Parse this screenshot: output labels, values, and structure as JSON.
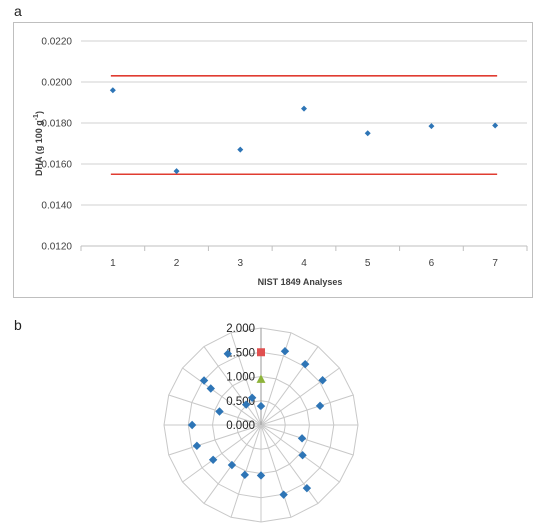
{
  "panels": {
    "a_label": "a",
    "b_label": "b"
  },
  "chart_data": [
    {
      "type": "scatter",
      "title": "",
      "xlabel": "NIST 1849 Analyses",
      "ylabel": "DHA (g 100 g⁻¹)",
      "ylabel_parts": {
        "main": "DHA (g 100 g",
        "sup": "-1",
        "close": ")"
      },
      "xlim": [
        0.5,
        7.5
      ],
      "ylim": [
        0.012,
        0.022
      ],
      "x_ticks": [
        "1",
        "2",
        "3",
        "4",
        "5",
        "6",
        "7"
      ],
      "y_ticks": [
        "0.0120",
        "0.0140",
        "0.0160",
        "0.0180",
        "0.0200",
        "0.0220"
      ],
      "y_tick_values": [
        0.012,
        0.014,
        0.016,
        0.018,
        0.02,
        0.022
      ],
      "grid": "horizontal",
      "series": [
        {
          "values": [
            0.0196,
            0.01565,
            0.0167,
            0.0187,
            0.0175,
            0.01785,
            0.01788
          ],
          "x": [
            1,
            2,
            3,
            4,
            5,
            6,
            7
          ],
          "color": "#2e75b6",
          "marker": "diamond"
        }
      ],
      "reference_lines": [
        {
          "y": 0.0203,
          "color": "#e03c31"
        },
        {
          "y": 0.0155,
          "color": "#e03c31"
        }
      ]
    },
    {
      "type": "polar_scatter",
      "title": "",
      "r_ticks": [
        "0.000",
        "0.500",
        "1.000",
        "1.500",
        "2.000"
      ],
      "r_tick_values": [
        0,
        0.5,
        1.0,
        1.5,
        2.0
      ],
      "rlim": [
        0,
        2.0
      ],
      "angular_divisions": 20,
      "series": [
        {
          "marker": "diamond",
          "color": "#2e75b6",
          "points": [
            {
              "angle_deg": 18,
              "r": 1.6
            },
            {
              "angle_deg": 36,
              "r": 1.55
            },
            {
              "angle_deg": 54,
              "r": 1.57
            },
            {
              "angle_deg": 72,
              "r": 1.28
            },
            {
              "angle_deg": 108,
              "r": 0.89
            },
            {
              "angle_deg": 126,
              "r": 1.06
            },
            {
              "angle_deg": 144,
              "r": 1.61
            },
            {
              "angle_deg": 162,
              "r": 1.51
            },
            {
              "angle_deg": 180,
              "r": 1.04
            },
            {
              "angle_deg": 198,
              "r": 1.08
            },
            {
              "angle_deg": 216,
              "r": 1.02
            },
            {
              "angle_deg": 234,
              "r": 1.22
            },
            {
              "angle_deg": 252,
              "r": 1.39
            },
            {
              "angle_deg": 270,
              "r": 1.42
            },
            {
              "angle_deg": 288,
              "r": 0.9
            },
            {
              "angle_deg": 306,
              "r": 1.28
            },
            {
              "angle_deg": 324,
              "r": 0.52
            },
            {
              "angle_deg": 342,
              "r": 0.59
            },
            {
              "angle_deg": 308,
              "r": 1.49
            },
            {
              "angle_deg": 335,
              "r": 1.62
            },
            {
              "angle_deg": 0,
              "r": 0.39
            }
          ]
        },
        {
          "marker": "square",
          "color": "#e05050",
          "points": [
            {
              "angle_deg": 0,
              "r": 1.5
            }
          ]
        },
        {
          "marker": "triangle",
          "color": "#8db33a",
          "points": [
            {
              "angle_deg": 0,
              "r": 0.94
            }
          ]
        }
      ]
    }
  ]
}
